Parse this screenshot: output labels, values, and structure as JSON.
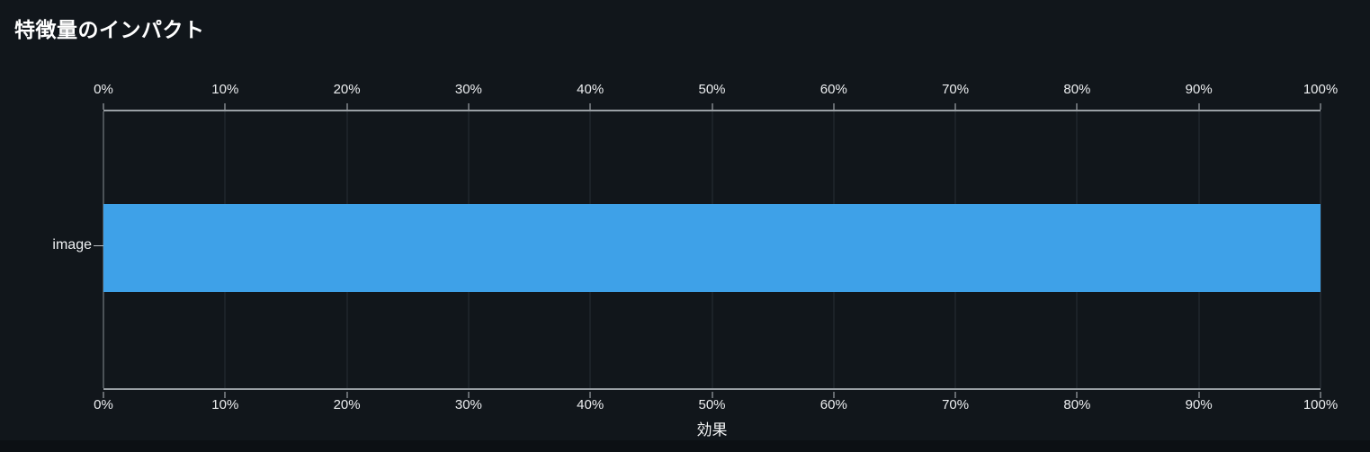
{
  "page": {
    "background": "#11161b"
  },
  "chart_data": {
    "type": "bar",
    "orientation": "horizontal",
    "title": "特徴量のインパクト",
    "categories": [
      "image"
    ],
    "values": [
      100
    ],
    "xlabel": "効果",
    "ylabel": "",
    "xlim": [
      0,
      100
    ],
    "x_tick_labels": [
      "0%",
      "10%",
      "20%",
      "30%",
      "40%",
      "50%",
      "60%",
      "70%",
      "80%",
      "90%",
      "100%"
    ],
    "x_tick_values": [
      0,
      10,
      20,
      30,
      40,
      50,
      60,
      70,
      80,
      90,
      100
    ],
    "grid": true,
    "legend": false,
    "axes_mirrored": true,
    "colors": {
      "bar": "#3ea1e8",
      "background": "#11161b",
      "gridline": "#282e34",
      "zeroline": "#878d93",
      "axis_line": "#9aa0a5",
      "tick_label": "#eceef0",
      "title_text": "#ffffff"
    }
  }
}
